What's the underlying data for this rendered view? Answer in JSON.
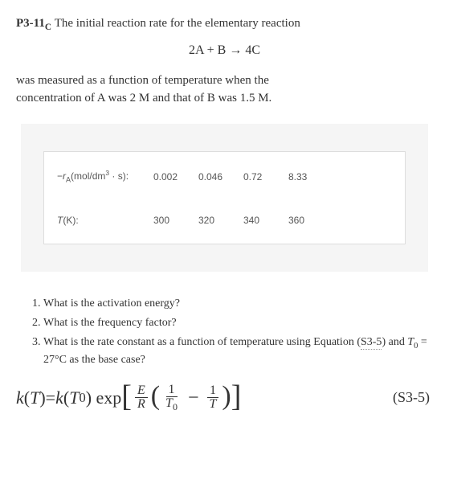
{
  "problem": {
    "label_prefix": "P3-11",
    "label_suffix": "C",
    "intro_text_1": " The initial reaction rate for the elementary reaction",
    "reaction": "2A + B → 4C",
    "intro_text_2a": "was measured as a function of temperature when the",
    "intro_text_2b": "concentration of A was 2 M and that of B was 1.5 M."
  },
  "table": {
    "background_color": "#f5f5f5",
    "card_border_color": "#dddddd",
    "text_color": "#555555",
    "row1": {
      "label_prefix": "−",
      "label_var": "r",
      "label_sub": "A",
      "label_unit_1": "(mol/dm",
      "label_sup": "3",
      "label_unit_2": " · s):",
      "values": [
        "0.002",
        "0.046",
        "0.72",
        "8.33"
      ]
    },
    "row2": {
      "label_var": "T",
      "label_unit": "(K):",
      "values": [
        "300",
        "320",
        "340",
        "360"
      ]
    }
  },
  "questions": {
    "q1": "What is the activation energy?",
    "q2": "What is the frequency factor?",
    "q3_a": "What is the rate constant as a function of temperature using Equation (",
    "q3_ref": "S3-5",
    "q3_b": ") and ",
    "q3_c": " = 27°C as the base case?",
    "q3_T0_var": "T",
    "q3_T0_sub": "0"
  },
  "equation": {
    "k": "k",
    "T": "T",
    "eq": "=",
    "T0_sub": "0",
    "exp": "exp",
    "E": "E",
    "R": "R",
    "one": "1",
    "label": "(S3-5)"
  },
  "styling": {
    "body_font_size": 15,
    "body_color": "#333333",
    "equation_font_size": 22,
    "question_font_size": 14,
    "table_font_size": 12
  }
}
